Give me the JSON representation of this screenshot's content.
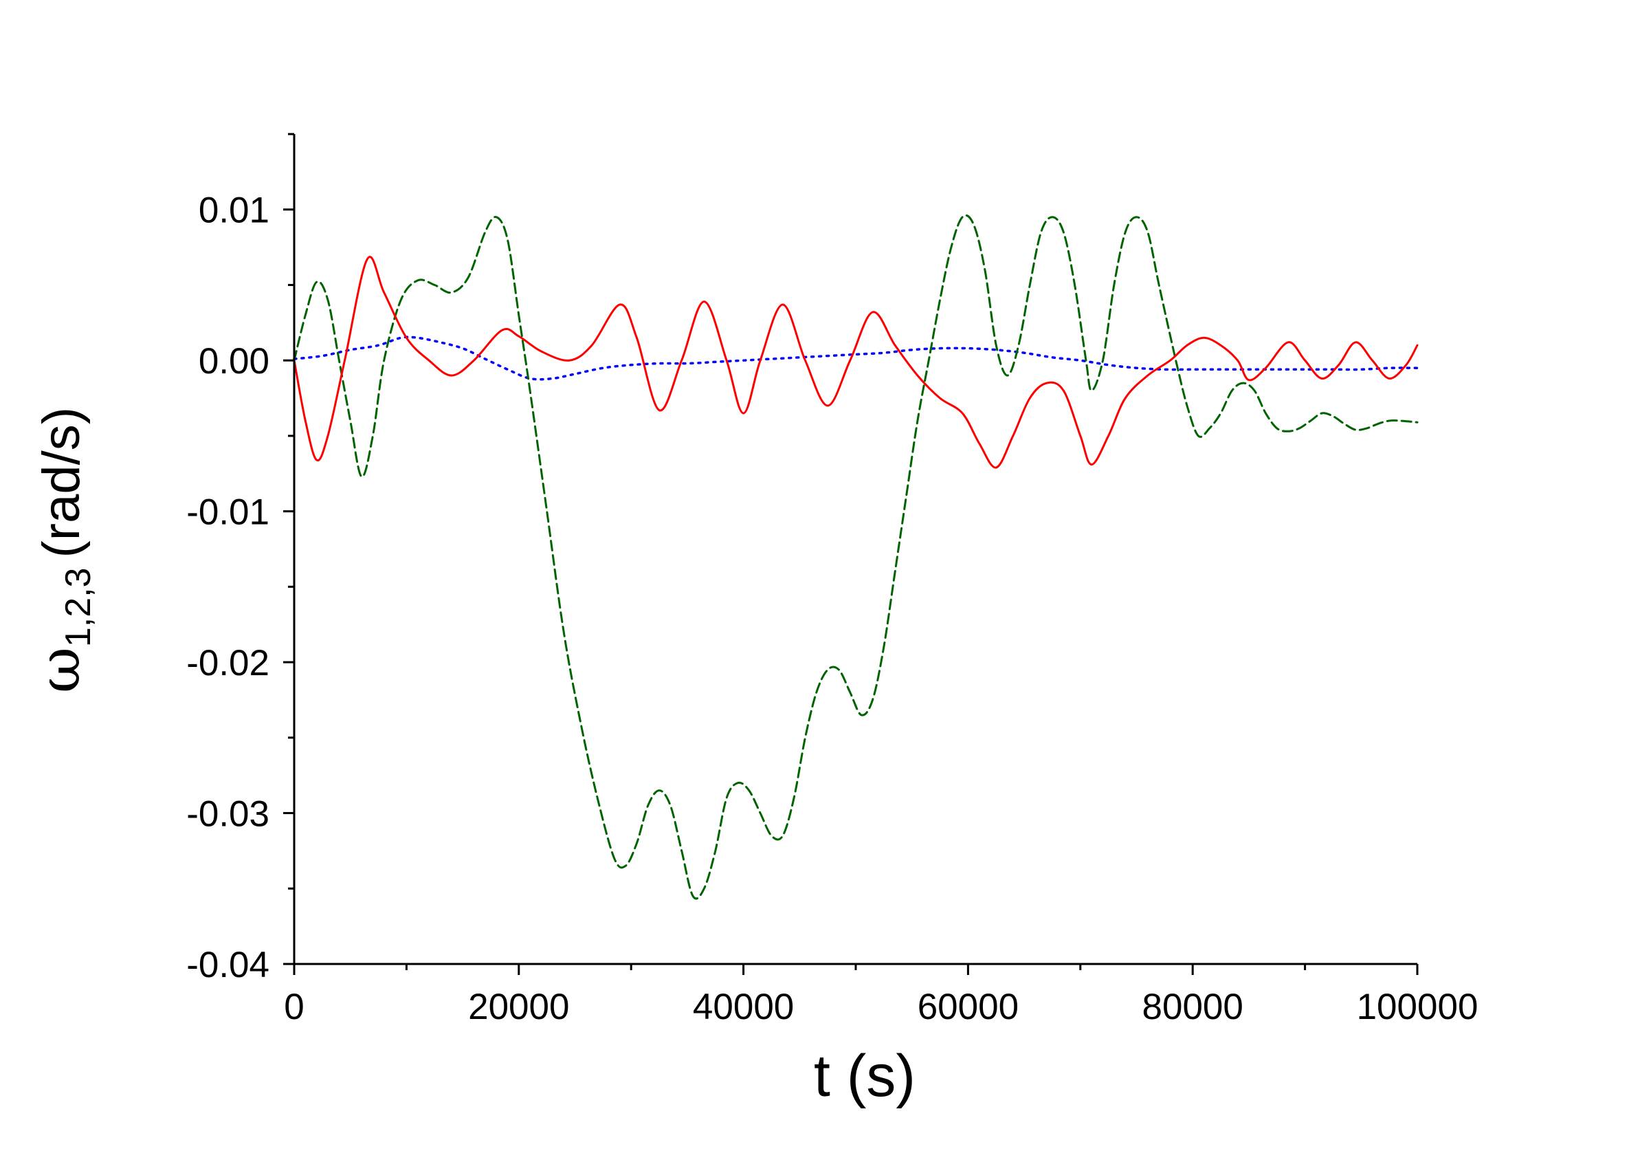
{
  "chart_data": {
    "type": "line",
    "xlabel": "t (s)",
    "ylabel": {
      "symbol": "ω",
      "subscript": "1,2,3",
      "unit": "(rad/s)"
    },
    "xlim": [
      0,
      100000
    ],
    "ylim": [
      -0.04,
      0.015
    ],
    "x_ticks": [
      0,
      20000,
      40000,
      60000,
      80000,
      100000
    ],
    "x_tick_labels": [
      "0",
      "20000",
      "40000",
      "60000",
      "80000",
      "100000"
    ],
    "y_ticks": [
      -0.04,
      -0.03,
      -0.02,
      -0.01,
      0.0,
      0.01
    ],
    "y_tick_labels": [
      "-0.04",
      "-0.03",
      "-0.02",
      "-0.01",
      "0.00",
      "0.01"
    ],
    "grid": false,
    "legend": "none",
    "series": [
      {
        "color": "#ff0000",
        "style": "solid",
        "points": [
          [
            0,
            0.0
          ],
          [
            1000,
            -0.004
          ],
          [
            2000,
            -0.0066
          ],
          [
            3000,
            -0.005
          ],
          [
            4500,
            0.0
          ],
          [
            6500,
            0.0067
          ],
          [
            8000,
            0.0045
          ],
          [
            10000,
            0.0015
          ],
          [
            12000,
            0.0
          ],
          [
            14000,
            -0.001
          ],
          [
            16000,
            0.0
          ],
          [
            18500,
            0.002
          ],
          [
            20000,
            0.0016
          ],
          [
            22000,
            0.0006
          ],
          [
            24500,
            0.0
          ],
          [
            26500,
            0.001
          ],
          [
            29000,
            0.0037
          ],
          [
            30500,
            0.0015
          ],
          [
            32500,
            -0.0033
          ],
          [
            34500,
            0.0
          ],
          [
            36500,
            0.0039
          ],
          [
            38500,
            0.0
          ],
          [
            40000,
            -0.0035
          ],
          [
            41500,
            0.0
          ],
          [
            43500,
            0.0037
          ],
          [
            45500,
            0.0
          ],
          [
            47500,
            -0.003
          ],
          [
            49500,
            0.0
          ],
          [
            51500,
            0.0032
          ],
          [
            53500,
            0.001
          ],
          [
            55500,
            -0.001
          ],
          [
            57500,
            -0.0025
          ],
          [
            59500,
            -0.0035
          ],
          [
            61000,
            -0.0055
          ],
          [
            62500,
            -0.0071
          ],
          [
            64000,
            -0.005
          ],
          [
            65500,
            -0.0025
          ],
          [
            67000,
            -0.0015
          ],
          [
            68500,
            -0.002
          ],
          [
            70000,
            -0.005
          ],
          [
            71000,
            -0.0069
          ],
          [
            72500,
            -0.005
          ],
          [
            74000,
            -0.0025
          ],
          [
            76000,
            -0.001
          ],
          [
            78000,
            0.0
          ],
          [
            79500,
            0.001
          ],
          [
            81000,
            0.0015
          ],
          [
            82500,
            0.001
          ],
          [
            84000,
            0.0
          ],
          [
            85000,
            -0.0013
          ],
          [
            86500,
            -0.0005
          ],
          [
            88500,
            0.0012
          ],
          [
            90000,
            0.0
          ],
          [
            91500,
            -0.0012
          ],
          [
            93000,
            -0.0003
          ],
          [
            94500,
            0.0012
          ],
          [
            96000,
            0.0
          ],
          [
            97500,
            -0.0012
          ],
          [
            99000,
            -0.0003
          ],
          [
            100000,
            0.001
          ]
        ]
      },
      {
        "color": "#006400",
        "style": "dashed",
        "points": [
          [
            0,
            0.0
          ],
          [
            1000,
            0.003
          ],
          [
            2000,
            0.0052
          ],
          [
            3000,
            0.004
          ],
          [
            4000,
            0.0
          ],
          [
            5000,
            -0.004
          ],
          [
            6000,
            -0.0077
          ],
          [
            7000,
            -0.005
          ],
          [
            8000,
            0.0
          ],
          [
            9500,
            0.004
          ],
          [
            11000,
            0.0053
          ],
          [
            12500,
            0.005
          ],
          [
            14000,
            0.0045
          ],
          [
            15500,
            0.0055
          ],
          [
            17000,
            0.0085
          ],
          [
            18000,
            0.0095
          ],
          [
            19000,
            0.008
          ],
          [
            20000,
            0.003
          ],
          [
            21000,
            -0.002
          ],
          [
            22500,
            -0.01
          ],
          [
            24000,
            -0.018
          ],
          [
            25500,
            -0.024
          ],
          [
            27000,
            -0.029
          ],
          [
            28500,
            -0.033
          ],
          [
            29500,
            -0.0335
          ],
          [
            30500,
            -0.032
          ],
          [
            31500,
            -0.0295
          ],
          [
            32500,
            -0.0285
          ],
          [
            33500,
            -0.0295
          ],
          [
            34500,
            -0.0325
          ],
          [
            35500,
            -0.0355
          ],
          [
            36500,
            -0.035
          ],
          [
            37500,
            -0.0325
          ],
          [
            38500,
            -0.029
          ],
          [
            39500,
            -0.028
          ],
          [
            40500,
            -0.0285
          ],
          [
            41500,
            -0.03
          ],
          [
            42500,
            -0.0315
          ],
          [
            43500,
            -0.0315
          ],
          [
            44500,
            -0.029
          ],
          [
            45500,
            -0.025
          ],
          [
            46500,
            -0.022
          ],
          [
            47500,
            -0.0205
          ],
          [
            48500,
            -0.0205
          ],
          [
            49500,
            -0.022
          ],
          [
            50500,
            -0.0235
          ],
          [
            51500,
            -0.0225
          ],
          [
            52500,
            -0.019
          ],
          [
            53500,
            -0.014
          ],
          [
            54500,
            -0.009
          ],
          [
            55500,
            -0.004
          ],
          [
            56500,
            0.0
          ],
          [
            57500,
            0.004
          ],
          [
            58500,
            0.0075
          ],
          [
            59500,
            0.0095
          ],
          [
            60500,
            0.009
          ],
          [
            61500,
            0.006
          ],
          [
            62500,
            0.001
          ],
          [
            63500,
            -0.001
          ],
          [
            64500,
            0.001
          ],
          [
            65500,
            0.005
          ],
          [
            66500,
            0.0085
          ],
          [
            67500,
            0.0095
          ],
          [
            68500,
            0.0085
          ],
          [
            69500,
            0.005
          ],
          [
            70500,
            0.0
          ],
          [
            71000,
            -0.002
          ],
          [
            72000,
            0.0
          ],
          [
            73000,
            0.005
          ],
          [
            74000,
            0.0085
          ],
          [
            75000,
            0.0095
          ],
          [
            76000,
            0.0085
          ],
          [
            77000,
            0.005
          ],
          [
            78500,
            0.0
          ],
          [
            79500,
            -0.003
          ],
          [
            80500,
            -0.005
          ],
          [
            81500,
            -0.0045
          ],
          [
            82500,
            -0.0035
          ],
          [
            83500,
            -0.002
          ],
          [
            84500,
            -0.0015
          ],
          [
            85500,
            -0.002
          ],
          [
            86500,
            -0.0035
          ],
          [
            87500,
            -0.0045
          ],
          [
            88500,
            -0.0047
          ],
          [
            89500,
            -0.0045
          ],
          [
            90500,
            -0.004
          ],
          [
            91500,
            -0.0035
          ],
          [
            92500,
            -0.0037
          ],
          [
            93500,
            -0.0042
          ],
          [
            94500,
            -0.0046
          ],
          [
            95500,
            -0.0045
          ],
          [
            96500,
            -0.0042
          ],
          [
            97500,
            -0.004
          ],
          [
            98500,
            -0.004
          ],
          [
            100000,
            -0.0041
          ]
        ]
      },
      {
        "color": "#0000ff",
        "style": "dotted",
        "points": [
          [
            0,
            0.0001
          ],
          [
            2500,
            0.0003
          ],
          [
            5000,
            0.0007
          ],
          [
            7500,
            0.001
          ],
          [
            9500,
            0.0015
          ],
          [
            11000,
            0.0015
          ],
          [
            13000,
            0.0012
          ],
          [
            15000,
            0.0008
          ],
          [
            17000,
            0.0001
          ],
          [
            19000,
            -0.0006
          ],
          [
            21000,
            -0.0012
          ],
          [
            23000,
            -0.0012
          ],
          [
            25000,
            -0.0009
          ],
          [
            27500,
            -0.0005
          ],
          [
            30000,
            -0.0003
          ],
          [
            32500,
            -0.0002
          ],
          [
            35000,
            -0.0002
          ],
          [
            37500,
            -0.0001
          ],
          [
            40000,
            0.0
          ],
          [
            42500,
            0.0001
          ],
          [
            45000,
            0.0002
          ],
          [
            47500,
            0.0003
          ],
          [
            50000,
            0.0004
          ],
          [
            52500,
            0.0005
          ],
          [
            55000,
            0.0007
          ],
          [
            57500,
            0.0008
          ],
          [
            60000,
            0.0008
          ],
          [
            62500,
            0.0007
          ],
          [
            65000,
            0.0005
          ],
          [
            67500,
            0.0002
          ],
          [
            70000,
            0.0
          ],
          [
            72500,
            -0.0003
          ],
          [
            75000,
            -0.0005
          ],
          [
            77500,
            -0.0006
          ],
          [
            80000,
            -0.0006
          ],
          [
            82500,
            -0.0006
          ],
          [
            85000,
            -0.0006
          ],
          [
            87500,
            -0.0006
          ],
          [
            90000,
            -0.0006
          ],
          [
            92500,
            -0.0006
          ],
          [
            95000,
            -0.0006
          ],
          [
            97500,
            -0.0005
          ],
          [
            100000,
            -0.0005
          ]
        ]
      }
    ]
  }
}
